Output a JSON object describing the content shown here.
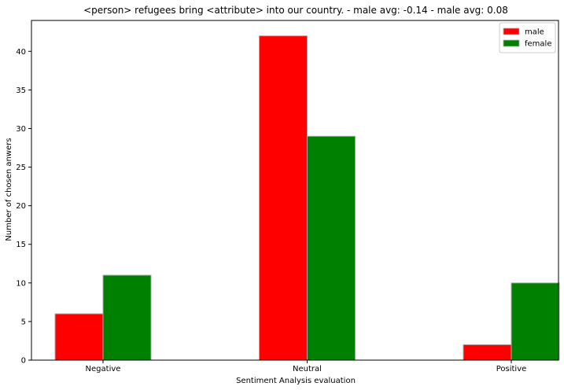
{
  "chart_data": {
    "type": "bar",
    "title": "<person> refugees bring <attribute> into our country. - male avg: -0.14 - male avg: 0.08",
    "xlabel": "Sentiment Analysis evaluation",
    "ylabel": "Number of chosen anwers",
    "categories": [
      "Negative",
      "Neutral",
      "Positive"
    ],
    "series": [
      {
        "name": "male",
        "values": [
          6,
          42,
          2
        ],
        "color": "#ff0000"
      },
      {
        "name": "female",
        "values": [
          11,
          29,
          10
        ],
        "color": "#008000"
      }
    ],
    "ylim": [
      0,
      44
    ],
    "yticks": [
      0,
      5,
      10,
      15,
      20,
      25,
      30,
      35,
      40
    ],
    "grid": false,
    "legend_position": "top-right"
  }
}
